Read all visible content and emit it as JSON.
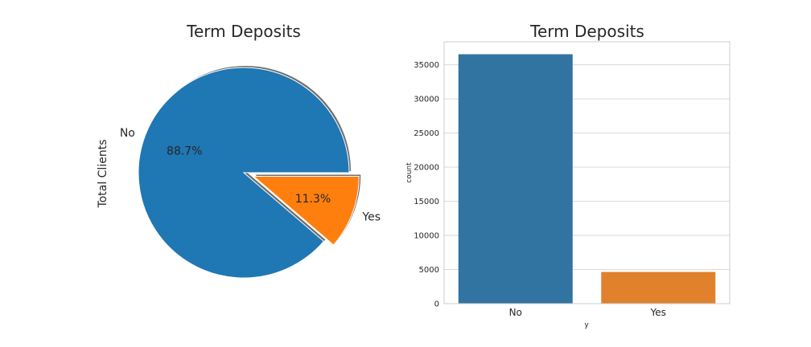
{
  "chart_data": [
    {
      "type": "pie",
      "title": "Term Deposits",
      "ylabel": "Total Clients",
      "labels": [
        "No",
        "Yes"
      ],
      "values": [
        88.7,
        11.3
      ],
      "autopct": [
        "88.7%",
        "11.3%"
      ],
      "explode": [
        0,
        0.1
      ],
      "shadow": true,
      "colors": [
        "#1f77b4",
        "#ff7f0e"
      ]
    },
    {
      "type": "bar",
      "title": "Term Deposits",
      "xlabel": "y",
      "ylabel": "count",
      "categories": [
        "No",
        "Yes"
      ],
      "values": [
        36548,
        4640
      ],
      "ylim": [
        0,
        38374
      ],
      "yticks": [
        0,
        5000,
        10000,
        15000,
        20000,
        25000,
        30000,
        35000
      ],
      "grid": true,
      "colors": [
        "#3274a1",
        "#e1812c"
      ]
    }
  ]
}
